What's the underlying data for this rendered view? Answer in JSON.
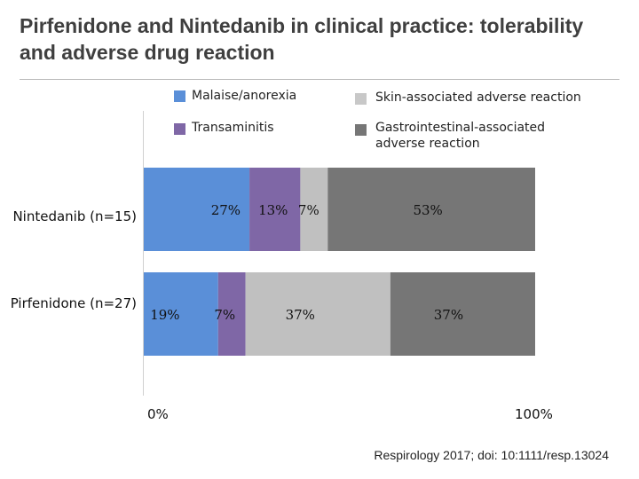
{
  "title": "Pirfenidone and Nintedanib in clinical practice: tolerability and adverse drug reaction",
  "citation": "Respirology 2017; doi: 10:1111/resp.13024",
  "chart_data": {
    "type": "bar",
    "orientation": "horizontal",
    "stacked": true,
    "categories": [
      "Nintedanib (n=15)",
      "Pirfenidone (n=27)"
    ],
    "series": [
      {
        "name": "Malaise/anorexia",
        "color": "#5a8fd8",
        "values": [
          27,
          19
        ],
        "labels": [
          "27%",
          "19%"
        ]
      },
      {
        "name": "Transaminitis",
        "color": "#7f67a6",
        "values": [
          13,
          7
        ],
        "labels": [
          "13%",
          "7%"
        ]
      },
      {
        "name": "Skin-associated adverse reaction",
        "color": "#c0c0c0",
        "values": [
          7,
          37
        ],
        "labels": [
          "7%",
          "37%"
        ]
      },
      {
        "name": "Gastrointestinal-associated adverse reaction",
        "color": "#767676",
        "values": [
          53,
          37
        ],
        "labels": [
          "53%",
          "37%"
        ]
      }
    ],
    "xlim": [
      0,
      100
    ],
    "x_tick_labels": [
      "0%",
      "100%"
    ],
    "legend_position": "top",
    "grid": false
  }
}
